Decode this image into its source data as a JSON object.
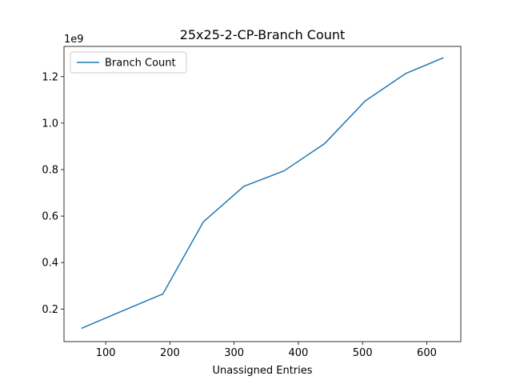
{
  "chart_data": {
    "type": "line",
    "title": "25x25-2-CP-Branch Count",
    "xlabel": "Unassigned Entries",
    "ylabel": "",
    "y_offset_label": "1e9",
    "xlim": [
      35,
      653
    ],
    "ylim": [
      0.06,
      1.33
    ],
    "x_ticks": [
      100,
      200,
      300,
      400,
      500,
      600
    ],
    "y_ticks": [
      0.2,
      0.4,
      0.6,
      0.8,
      1.0,
      1.2
    ],
    "grid": false,
    "legend_position": "upper-left",
    "series": [
      {
        "name": "Branch Count",
        "color": "#1f77b4",
        "x": [
          63,
          126,
          189,
          252,
          315,
          378,
          441,
          504,
          567,
          625
        ],
        "y": [
          0.118,
          0.192,
          0.265,
          0.575,
          0.728,
          0.795,
          0.912,
          1.095,
          1.213,
          1.28
        ]
      }
    ]
  }
}
